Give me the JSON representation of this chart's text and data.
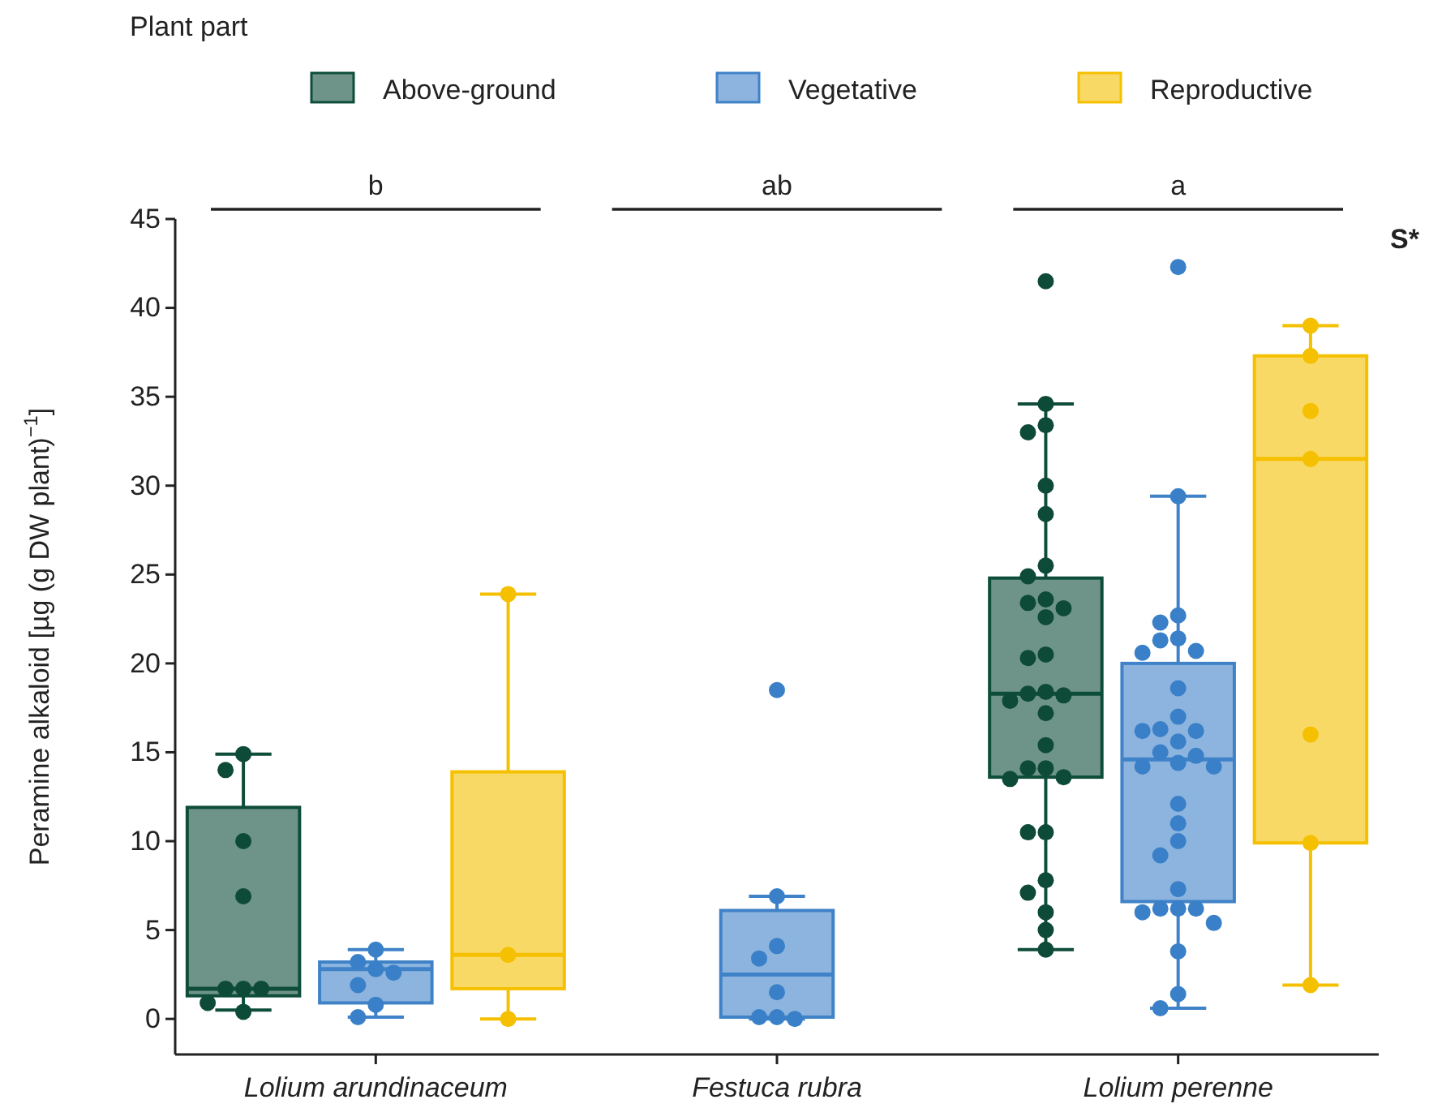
{
  "chart_data": {
    "type": "box",
    "ylabel": "Peramine alkaloid [µg (g DW plant)$^{−1}$]",
    "legend_title": "Plant part",
    "legend": "top",
    "ylim": [
      -2,
      45
    ],
    "yticks": [
      0,
      5,
      10,
      15,
      20,
      25,
      30,
      35,
      40,
      45
    ],
    "categories": [
      "Lolium arundinaceum",
      "Festuca rubra",
      "Lolium perenne"
    ],
    "annotations": [
      "b",
      "ab",
      "a",
      "S*"
    ],
    "series": [
      {
        "name": "Above-ground",
        "color": "#0e4d3a",
        "boxes": [
          {
            "low": 0.5,
            "q1": 1.3,
            "median": 1.7,
            "q3": 11.9,
            "high": 14.9
          },
          null,
          {
            "low": 3.9,
            "q1": 13.6,
            "median": 18.3,
            "q3": 24.8,
            "high": 34.6
          }
        ]
      },
      {
        "name": "Vegetative",
        "color": "#3f82c8",
        "boxes": [
          {
            "low": 0.1,
            "q1": 0.9,
            "median": 2.8,
            "q3": 3.2,
            "high": 3.9
          },
          {
            "low": 0,
            "q1": 0.1,
            "median": 2.5,
            "q3": 6.1,
            "high": 6.9
          },
          {
            "low": 0.6,
            "q1": 6.6,
            "median": 14.6,
            "q3": 20,
            "high": 29.4
          }
        ]
      },
      {
        "name": "Reproductive",
        "color": "#f5c000",
        "boxes": [
          {
            "low": 0,
            "q1": 1.7,
            "median": 3.6,
            "q3": 13.9,
            "high": 23.9
          },
          null,
          {
            "low": 1.9,
            "q1": 9.9,
            "median": 31.5,
            "q3": 37.3,
            "high": 39
          }
        ]
      },
      {
        "type": "scatter",
        "color": "#0d4a38",
        "x": [
          "Lolium arundinaceum",
          "Lolium arundinaceum",
          "Lolium arundinaceum",
          "Lolium arundinaceum",
          "Lolium arundinaceum",
          "Lolium arundinaceum",
          "Lolium arundinaceum",
          "Lolium arundinaceum",
          "Lolium arundinaceum",
          "Lolium perenne",
          "Lolium perenne",
          "Lolium perenne",
          "Lolium perenne",
          "Lolium perenne",
          "Lolium perenne",
          "Lolium perenne",
          "Lolium perenne",
          "Lolium perenne",
          "Lolium perenne",
          "Lolium perenne",
          "Lolium perenne",
          "Lolium perenne",
          "Lolium perenne",
          "Lolium perenne",
          "Lolium perenne",
          "Lolium perenne",
          "Lolium perenne",
          "Lolium perenne",
          "Lolium perenne",
          "Lolium perenne",
          "Lolium perenne",
          "Lolium perenne",
          "Lolium perenne",
          "Lolium perenne",
          "Lolium perenne",
          "Lolium perenne",
          "Lolium perenne",
          "Lolium perenne",
          "Lolium perenne",
          "Lolium perenne"
        ],
        "values": [
          14.9,
          14,
          10,
          6.9,
          1.7,
          1.7,
          1.7,
          0.9,
          0.4,
          41.5,
          34.6,
          33.4,
          33,
          30,
          28.4,
          25.5,
          24.9,
          23.6,
          23.4,
          23.1,
          22.6,
          20.5,
          20.3,
          18.4,
          18.3,
          18.2,
          17.9,
          17.2,
          15.4,
          14.1,
          14.1,
          13.6,
          13.5,
          10.5,
          10.5,
          7.8,
          7.1,
          6,
          5,
          3.9
        ]
      },
      {
        "type": "scatter",
        "color": "#3a80c8",
        "x": [
          "Lolium arundinaceum",
          "Lolium arundinaceum",
          "Lolium arundinaceum",
          "Lolium arundinaceum",
          "Lolium arundinaceum",
          "Lolium arundinaceum",
          "Lolium arundinaceum",
          "Festuca rubra",
          "Festuca rubra",
          "Festuca rubra",
          "Festuca rubra",
          "Festuca rubra",
          "Festuca rubra",
          "Festuca rubra",
          "Festuca rubra",
          "Lolium perenne",
          "Lolium perenne",
          "Lolium perenne",
          "Lolium perenne",
          "Lolium perenne",
          "Lolium perenne",
          "Lolium perenne",
          "Lolium perenne",
          "Lolium perenne",
          "Lolium perenne",
          "Lolium perenne",
          "Lolium perenne",
          "Lolium perenne",
          "Lolium perenne",
          "Lolium perenne",
          "Lolium perenne",
          "Lolium perenne",
          "Lolium perenne",
          "Lolium perenne",
          "Lolium perenne",
          "Lolium perenne",
          "Lolium perenne",
          "Lolium perenne",
          "Lolium perenne",
          "Lolium perenne",
          "Lolium perenne",
          "Lolium perenne",
          "Lolium perenne",
          "Lolium perenne",
          "Lolium perenne",
          "Lolium perenne",
          "Lolium perenne"
        ],
        "values": [
          3.9,
          3.2,
          2.8,
          2.6,
          1.9,
          0.8,
          0.1,
          18.5,
          6.9,
          4.1,
          3.4,
          1.5,
          0.1,
          0.1,
          0,
          42.3,
          29.4,
          22.7,
          22.3,
          21.4,
          21.3,
          20.7,
          20.6,
          18.6,
          17,
          16.3,
          16.2,
          16.2,
          15.6,
          15,
          14.8,
          14.4,
          14.2,
          14.2,
          12.1,
          11,
          10,
          9.2,
          7.3,
          6.2,
          6.2,
          6.2,
          6,
          5.4,
          3.8,
          1.4,
          0.6
        ]
      },
      {
        "type": "scatter",
        "color": "#f5c000",
        "x": [
          "Lolium arundinaceum",
          "Lolium arundinaceum",
          "Lolium arundinaceum",
          "Lolium perenne",
          "Lolium perenne",
          "Lolium perenne",
          "Lolium perenne",
          "Lolium perenne",
          "Lolium perenne",
          "Lolium perenne"
        ],
        "values": [
          23.9,
          3.6,
          0,
          39,
          37.3,
          34.2,
          31.5,
          16,
          9.9,
          1.9
        ]
      }
    ]
  }
}
